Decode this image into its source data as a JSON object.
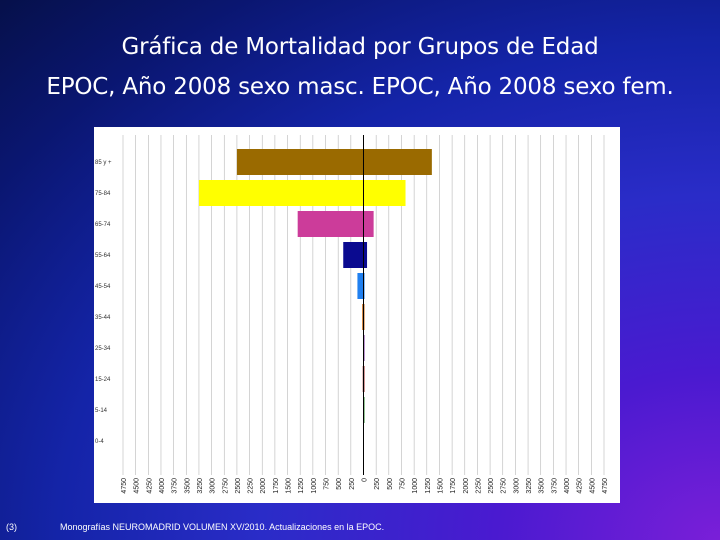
{
  "slide": {
    "title_line1": "Gráfica de Mortalidad por Grupos de Edad",
    "title_line2": "EPOC, Año 2008 sexo masc. EPOC, Año 2008 sexo fem.",
    "footnote_ref": "(3)",
    "footnote_source": "Monografías NEUROMADRID VOLUMEN XV/2010. Actualizaciones en la EPOC."
  },
  "chart_data": {
    "type": "bar",
    "orientation": "horizontal",
    "categories": [
      "85 y +",
      "75-84",
      "65-74",
      "55-64",
      "45-54",
      "35-44",
      "25-34",
      "15-24",
      "5-14",
      "0-4"
    ],
    "series": [
      {
        "values": [
          -2500,
          -3250,
          -1300,
          -400,
          -120,
          -25,
          -10,
          -15,
          -8,
          0
        ],
        "colors": [
          "#9a6a00",
          "#ffff00",
          "#cc3c9a",
          "#0a0a90",
          "#2080f0",
          "#cc6a10",
          "#7a2aa0",
          "#a02a2a",
          "#2a8a2a",
          "#888888"
        ]
      },
      {
        "values": [
          1350,
          830,
          200,
          70,
          20,
          5,
          2,
          2,
          2,
          0
        ],
        "colors": [
          "#9a6a00",
          "#ffff00",
          "#cc3c9a",
          "#0a0a90",
          "#2080f0",
          "#cc6a10",
          "#7a2aa0",
          "#a02a2a",
          "#2a8a2a",
          "#888888"
        ]
      }
    ],
    "x_ticks": [
      4750,
      4500,
      4250,
      4000,
      3750,
      3500,
      3250,
      3000,
      2750,
      2500,
      2250,
      2000,
      1750,
      1500,
      1250,
      1000,
      750,
      500,
      250,
      0,
      250,
      500,
      750,
      1000,
      1250,
      1500,
      1750,
      2000,
      2250,
      2500,
      2750,
      3000,
      3250,
      3500,
      3750,
      4000,
      4250,
      4500,
      4750
    ],
    "xlim": [
      -4750,
      4750
    ],
    "grid": true,
    "legend": "none",
    "title": "",
    "xlabel": "",
    "ylabel": ""
  }
}
